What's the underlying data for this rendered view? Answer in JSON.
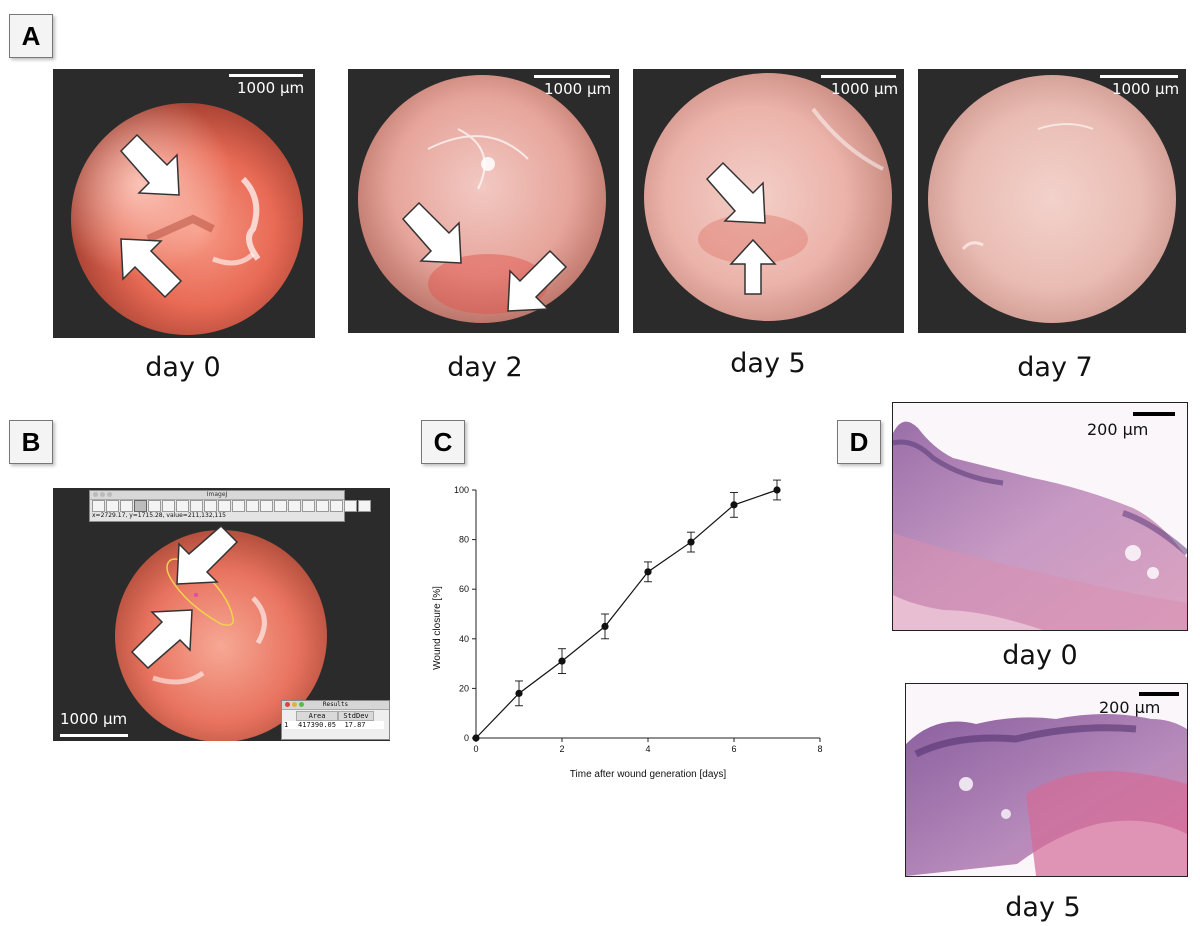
{
  "panels": {
    "a": {
      "label": "A"
    },
    "b": {
      "label": "B"
    },
    "c": {
      "label": "C"
    },
    "d": {
      "label": "D"
    }
  },
  "endoscopy": {
    "scale_bar": "1000 µm",
    "captions": [
      "day 0",
      "day 2",
      "day 5",
      "day 7"
    ]
  },
  "imagej": {
    "window_title": "ImageJ",
    "status": "x=2729.17, y=1715.28, value=211,132,115",
    "results_title": "Results",
    "results_headers": [
      "",
      "Area",
      "StdDev"
    ],
    "results_row": [
      "1",
      "417390.05",
      "17.87"
    ],
    "scale_bar": "1000 µm"
  },
  "histology": {
    "scale_bar": "200 µm",
    "captions": [
      "day 0",
      "day 5"
    ]
  },
  "chart_data": {
    "type": "line",
    "title": "",
    "xlabel": "Time after wound generation [days]",
    "ylabel": "Wound closure [%]",
    "xlim": [
      0,
      8
    ],
    "ylim": [
      0,
      100
    ],
    "xticks": [
      0,
      2,
      4,
      6,
      8
    ],
    "yticks": [
      0,
      20,
      40,
      60,
      80,
      100
    ],
    "grid": false,
    "series": [
      {
        "x": [
          0,
          1,
          2,
          3,
          4,
          5,
          6,
          7
        ],
        "y": [
          0,
          18,
          31,
          45,
          67,
          79,
          94,
          100
        ],
        "error": [
          0,
          5,
          5,
          5,
          4,
          4,
          5,
          4
        ]
      }
    ]
  }
}
